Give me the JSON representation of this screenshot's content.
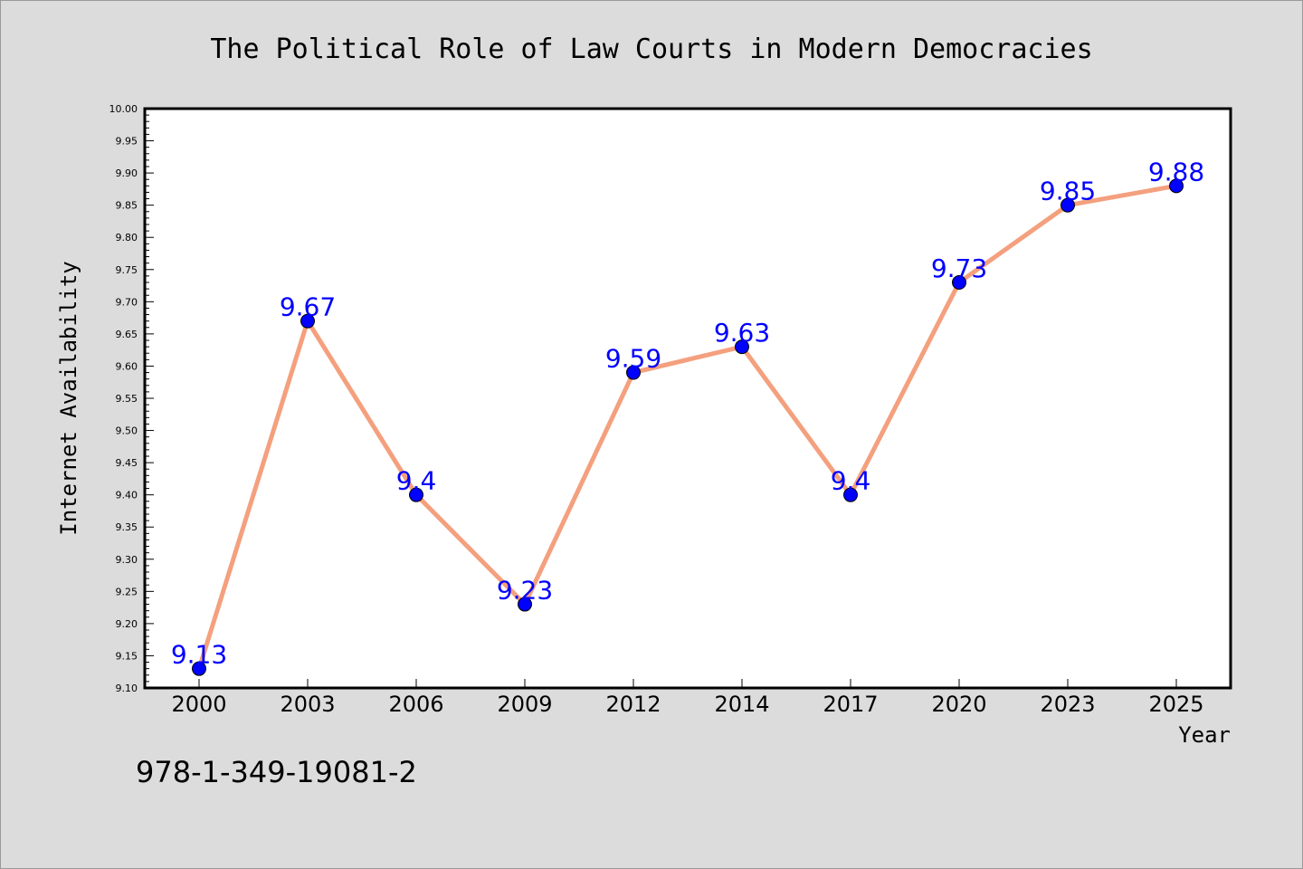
{
  "chart_data": {
    "type": "line",
    "title": "The Political Role of Law Courts in Modern Democracies",
    "xlabel": "Year",
    "ylabel": "Internet Availability",
    "categories": [
      "2000",
      "2003",
      "2006",
      "2009",
      "2012",
      "2014",
      "2017",
      "2020",
      "2023",
      "2025"
    ],
    "series": [
      {
        "values": [
          9.13,
          9.67,
          9.4,
          9.23,
          9.59,
          9.63,
          9.4,
          9.73,
          9.85,
          9.88
        ],
        "data_labels": [
          "9.13",
          "9.67",
          "9.4",
          "9.23",
          "9.59",
          "9.63",
          "9.4",
          "9.73",
          "9.85",
          "9.88"
        ]
      }
    ],
    "ylim": [
      9.1,
      10.0
    ],
    "yticks": [
      "9.10",
      "9.15",
      "9.20",
      "9.25",
      "9.30",
      "9.35",
      "9.40",
      "9.45",
      "9.50",
      "9.55",
      "9.60",
      "9.65",
      "9.70",
      "9.75",
      "9.80",
      "9.85",
      "9.90",
      "9.95",
      "10.00"
    ],
    "grid": false,
    "legend": "none",
    "colors": {
      "background": "#dcdcdc",
      "plot_area": "#ffffff",
      "line": "#f4a07e",
      "marker": "#0000ff",
      "data_label": "#0000ff"
    }
  },
  "annotation": "978-1-349-19081-2"
}
